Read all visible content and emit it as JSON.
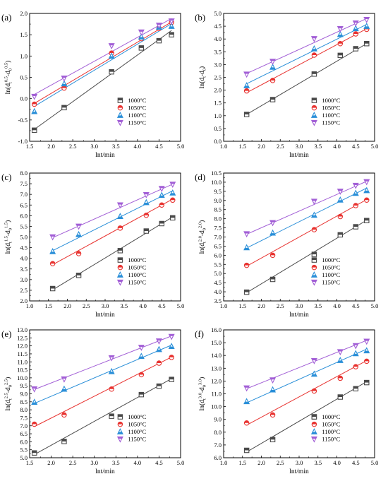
{
  "series_styles": [
    {
      "name": "1000°C",
      "color": "#4a4a4a",
      "marker": "square"
    },
    {
      "name": "1050°C",
      "color": "#e8322f",
      "marker": "circle"
    },
    {
      "name": "1100°C",
      "color": "#2a8fd8",
      "marker": "triangle-up"
    },
    {
      "name": "1150°C",
      "color": "#a25fd6",
      "marker": "triangle-down"
    }
  ],
  "chart_data": [
    {
      "type": "scatter",
      "panel_label": "(a)",
      "xlabel": "lnt/min",
      "ylabel_main": "ln(d",
      "ylabel_sup1": "0.5",
      "ylabel_mid": "-d",
      "ylabel_sup2": "0.5",
      "ylabel_end": ")",
      "xlim": [
        1.5,
        5.0
      ],
      "ylim": [
        -1.0,
        2.0
      ],
      "xticks": [
        "1.5",
        "2.0",
        "2.5",
        "3.0",
        "3.5",
        "4.0",
        "4.5",
        "5.0"
      ],
      "yticks": [
        "-1.0",
        "-0.5",
        "0.0",
        "0.5",
        "1.0",
        "1.5",
        "2.0"
      ],
      "x": [
        1.61,
        2.3,
        3.4,
        4.09,
        4.5,
        4.79
      ],
      "series": [
        {
          "name": "1000°C",
          "values": [
            -0.74,
            -0.21,
            0.63,
            1.19,
            1.36,
            1.5
          ]
        },
        {
          "name": "1050°C",
          "values": [
            -0.13,
            0.25,
            1.07,
            1.41,
            1.65,
            1.79
          ]
        },
        {
          "name": "1100°C",
          "values": [
            -0.3,
            0.35,
            1.0,
            1.45,
            1.68,
            1.7
          ]
        },
        {
          "name": "1150°C",
          "values": [
            0.05,
            0.48,
            1.24,
            1.56,
            1.72,
            1.82
          ]
        }
      ],
      "fit_lines": [
        {
          "name": "1000°C",
          "y": [
            -0.72,
            1.6
          ]
        },
        {
          "name": "1050°C",
          "y": [
            -0.11,
            1.8
          ]
        },
        {
          "name": "1100°C",
          "y": [
            -0.18,
            1.76
          ]
        },
        {
          "name": "1150°C",
          "y": [
            0.1,
            1.88
          ]
        }
      ]
    },
    {
      "type": "scatter",
      "panel_label": "(b)",
      "xlabel": "lnt/min",
      "ylabel_main": "ln(d",
      "ylabel_sup1": "",
      "ylabel_mid": "-d",
      "ylabel_sup2": "",
      "ylabel_end": ")",
      "ylabel_sub1": "t",
      "ylabel_sub2": "0",
      "xlim": [
        1.0,
        5.0
      ],
      "ylim": [
        0.0,
        5.0
      ],
      "xticks": [
        "1.0",
        "1.5",
        "2.0",
        "2.5",
        "3.0",
        "3.5",
        "4.0",
        "4.5",
        "5.0"
      ],
      "yticks": [
        "0.0",
        "0.5",
        "1.0",
        "1.5",
        "2.0",
        "2.5",
        "3.0",
        "3.5",
        "4.0",
        "4.5",
        "5.0"
      ],
      "x": [
        1.61,
        2.3,
        3.4,
        4.09,
        4.5,
        4.79
      ],
      "series": [
        {
          "name": "1000°C",
          "values": [
            1.05,
            1.63,
            2.63,
            3.36,
            3.62,
            3.82
          ]
        },
        {
          "name": "1050°C",
          "values": [
            1.97,
            2.38,
            3.37,
            3.82,
            4.2,
            4.38
          ]
        },
        {
          "name": "1100°C",
          "values": [
            2.18,
            2.9,
            3.62,
            4.18,
            4.41,
            4.5
          ]
        },
        {
          "name": "1150°C",
          "values": [
            2.62,
            3.12,
            4.01,
            4.4,
            4.62,
            4.76
          ]
        }
      ],
      "fit_lines": [
        {
          "name": "1000°C",
          "y": [
            1.05,
            3.82
          ]
        },
        {
          "name": "1050°C",
          "y": [
            1.9,
            4.4
          ]
        },
        {
          "name": "1100°C",
          "y": [
            2.25,
            4.57
          ]
        },
        {
          "name": "1150°C",
          "y": [
            2.65,
            4.8
          ]
        }
      ]
    },
    {
      "type": "scatter",
      "panel_label": "(c)",
      "xlabel": "lnt/min",
      "ylabel_main": "ln(d",
      "ylabel_sup1": "1.5",
      "ylabel_mid": "-d",
      "ylabel_sup2": "1.5",
      "ylabel_end": ")",
      "xlim": [
        1.0,
        5.0
      ],
      "ylim": [
        2.0,
        8.0
      ],
      "xticks": [
        "1.0",
        "1.5",
        "2.0",
        "2.5",
        "3.0",
        "3.5",
        "4.0",
        "4.5",
        "5.0"
      ],
      "yticks": [
        "2.0",
        "2.5",
        "3.0",
        "3.5",
        "4.0",
        "4.5",
        "5.0",
        "5.5",
        "6.0",
        "6.5",
        "7.0",
        "7.5",
        "8.0"
      ],
      "x": [
        1.61,
        2.3,
        3.4,
        4.09,
        4.5,
        4.79
      ],
      "series": [
        {
          "name": "1000°C",
          "values": [
            2.58,
            3.2,
            4.36,
            5.28,
            5.63,
            5.9
          ]
        },
        {
          "name": "1050°C",
          "values": [
            3.75,
            4.22,
            5.42,
            6.02,
            6.5,
            6.73
          ]
        },
        {
          "name": "1100°C",
          "values": [
            4.32,
            5.12,
            5.97,
            6.62,
            6.96,
            7.07
          ]
        },
        {
          "name": "1150°C",
          "values": [
            5.0,
            5.5,
            6.5,
            6.98,
            7.27,
            7.47
          ]
        }
      ],
      "fit_lines": [
        {
          "name": "1000°C",
          "y": [
            2.52,
            5.94
          ]
        },
        {
          "name": "1050°C",
          "y": [
            3.7,
            6.78
          ]
        },
        {
          "name": "1100°C",
          "y": [
            4.36,
            7.17
          ]
        },
        {
          "name": "1150°C",
          "y": [
            4.97,
            7.48
          ]
        }
      ]
    },
    {
      "type": "scatter",
      "panel_label": "(d)",
      "xlabel": "lnt/min",
      "ylabel_main": "ln(d",
      "ylabel_sup1": "2.0",
      "ylabel_mid": "-d",
      "ylabel_sup2": "2.0",
      "ylabel_end": ")",
      "xlim": [
        1.0,
        5.0
      ],
      "ylim": [
        3.5,
        10.5
      ],
      "xticks": [
        "1.0",
        "1.5",
        "2.0",
        "2.5",
        "3.0",
        "3.5",
        "4.0",
        "4.5",
        "5.0"
      ],
      "yticks": [
        "3.5",
        "4.0",
        "4.5",
        "5.0",
        "5.5",
        "6.0",
        "6.5",
        "7.0",
        "7.5",
        "8.0",
        "8.5",
        "9.0",
        "9.5",
        "10.0",
        "10.5"
      ],
      "x": [
        1.61,
        2.3,
        3.4,
        4.09,
        4.5,
        4.79
      ],
      "series": [
        {
          "name": "1000°C",
          "values": [
            3.98,
            4.68,
            6.05,
            7.12,
            7.56,
            7.9
          ]
        },
        {
          "name": "1050°C",
          "values": [
            5.45,
            6.0,
            7.4,
            8.12,
            8.72,
            9.02
          ]
        },
        {
          "name": "1100°C",
          "values": [
            6.42,
            7.22,
            8.2,
            9.03,
            9.4,
            9.55
          ]
        },
        {
          "name": "1150°C",
          "values": [
            7.17,
            7.78,
            8.95,
            9.5,
            9.82,
            10.02
          ]
        }
      ],
      "fit_lines": [
        {
          "name": "1000°C",
          "y": [
            3.95,
            7.92
          ]
        },
        {
          "name": "1050°C",
          "y": [
            5.4,
            9.05
          ]
        },
        {
          "name": "1100°C",
          "y": [
            6.4,
            9.68
          ]
        },
        {
          "name": "1150°C",
          "y": [
            7.15,
            10.05
          ]
        }
      ]
    },
    {
      "type": "scatter",
      "panel_label": "(e)",
      "xlabel": "lnt/min",
      "ylabel_main": "ln(d",
      "ylabel_sup1": "2.5",
      "ylabel_mid": "-d",
      "ylabel_sup2": "2.5",
      "ylabel_end": ")",
      "xlim": [
        1.5,
        5.0
      ],
      "ylim": [
        5.0,
        13.0
      ],
      "xticks": [
        "1.5",
        "2.0",
        "2.5",
        "3.0",
        "3.5",
        "4.0",
        "4.5",
        "5.0"
      ],
      "yticks": [
        "5.0",
        "5.5",
        "6.0",
        "6.5",
        "7.0",
        "7.5",
        "8.0",
        "8.5",
        "9.0",
        "9.5",
        "10.0",
        "10.5",
        "11.0",
        "11.5",
        "12.0",
        "12.5",
        "13.0"
      ],
      "x": [
        1.61,
        2.3,
        3.4,
        4.09,
        4.5,
        4.79
      ],
      "series": [
        {
          "name": "1000°C",
          "values": [
            5.3,
            6.02,
            7.6,
            8.95,
            9.48,
            9.9
          ]
        },
        {
          "name": "1050°C",
          "values": [
            7.1,
            7.68,
            9.3,
            10.2,
            10.92,
            11.28
          ]
        },
        {
          "name": "1100°C",
          "values": [
            8.48,
            9.3,
            10.4,
            11.35,
            11.78,
            11.97
          ]
        },
        {
          "name": "1150°C",
          "values": [
            9.3,
            9.92,
            11.25,
            11.9,
            12.3,
            12.58
          ]
        }
      ],
      "fit_lines": [
        {
          "name": "1000°C",
          "y": [
            5.2,
            9.95
          ]
        },
        {
          "name": "1050°C",
          "y": [
            6.95,
            11.3
          ]
        },
        {
          "name": "1100°C",
          "y": [
            8.4,
            12.05
          ]
        },
        {
          "name": "1150°C",
          "y": [
            9.27,
            12.62
          ]
        }
      ]
    },
    {
      "type": "scatter",
      "panel_label": "(f)",
      "xlabel": "lnt/min",
      "ylabel_main": "ln(d",
      "ylabel_sup1": "3.0",
      "ylabel_mid": "-d",
      "ylabel_sup2": "3.0",
      "ylabel_end": ")",
      "xlim": [
        1.0,
        5.0
      ],
      "ylim": [
        6.0,
        16.0
      ],
      "xticks": [
        "1.0",
        "1.5",
        "2.0",
        "2.5",
        "3.0",
        "3.5",
        "4.0",
        "4.5",
        "5.0"
      ],
      "yticks": [
        "6.0",
        "7.0",
        "8.0",
        "9.0",
        "10.0",
        "11.0",
        "12.0",
        "13.0",
        "14.0",
        "15.0",
        "16.0"
      ],
      "x": [
        1.61,
        2.3,
        3.4,
        4.09,
        4.5,
        4.79
      ],
      "series": [
        {
          "name": "1000°C",
          "values": [
            6.58,
            7.42,
            9.2,
            10.75,
            11.4,
            11.88
          ]
        },
        {
          "name": "1050°C",
          "values": [
            8.72,
            9.35,
            11.22,
            12.22,
            13.12,
            13.55
          ]
        },
        {
          "name": "1100°C",
          "values": [
            10.4,
            11.32,
            12.55,
            13.62,
            14.15,
            14.38
          ]
        },
        {
          "name": "1150°C",
          "values": [
            11.45,
            12.08,
            13.58,
            14.28,
            14.76,
            15.1
          ]
        }
      ],
      "fit_lines": [
        {
          "name": "1000°C",
          "y": [
            6.45,
            11.95
          ]
        },
        {
          "name": "1050°C",
          "y": [
            8.55,
            13.6
          ]
        },
        {
          "name": "1100°C",
          "y": [
            10.3,
            14.5
          ]
        },
        {
          "name": "1150°C",
          "y": [
            11.4,
            15.18
          ]
        }
      ]
    }
  ]
}
